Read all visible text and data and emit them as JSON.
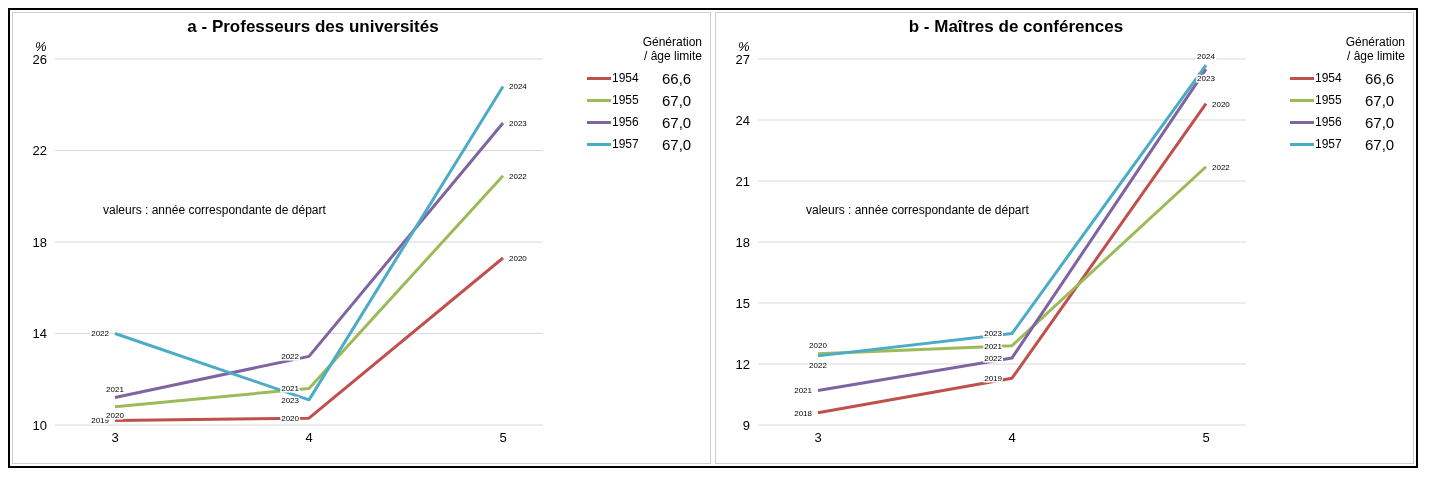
{
  "chart_data": [
    {
      "type": "line",
      "title": "a - Professeurs des universités",
      "ylabel": "%",
      "legend_title": "Génération\n/ âge limite",
      "categories": [
        "3",
        "4",
        "5"
      ],
      "ylim": [
        10,
        26
      ],
      "yticks": [
        10,
        14,
        18,
        22,
        26
      ],
      "grid": "y",
      "legend": "top right",
      "series": [
        {
          "name": "1954",
          "color": "#c0504d",
          "values": [
            10.2,
            10.3,
            17.3
          ]
        },
        {
          "name": "1955",
          "color": "#9bbb59",
          "values": [
            10.8,
            11.6,
            20.9
          ]
        },
        {
          "name": "1956",
          "color": "#8064a2",
          "values": [
            11.2,
            13.0,
            23.2
          ]
        },
        {
          "name": "1957",
          "color": "#4bacc6",
          "values": [
            14.0,
            11.1,
            24.8
          ]
        }
      ],
      "annotations": [
        "valeurs : année correspondante de départ",
        "66,6",
        "67,0",
        "67,0",
        "67,0",
        {
          "text": "2019",
          "x": "3",
          "y": 10.2
        },
        {
          "text": "2020",
          "x": "4",
          "y": 10.3
        },
        {
          "text": "2020",
          "x": "5",
          "y": 17.3
        },
        {
          "text": "2020",
          "x": "3",
          "y": 10.8
        },
        {
          "text": "2021",
          "x": "4",
          "y": 11.6
        },
        {
          "text": "2022",
          "x": "5",
          "y": 20.9
        },
        {
          "text": "2021",
          "x": "3",
          "y": 11.2
        },
        {
          "text": "2022",
          "x": "4",
          "y": 13.0
        },
        {
          "text": "2023",
          "x": "5",
          "y": 23.2
        },
        {
          "text": "2022",
          "x": "3",
          "y": 14.0
        },
        {
          "text": "2023",
          "x": "4",
          "y": 11.1
        },
        {
          "text": "2024",
          "x": "5",
          "y": 24.8
        }
      ]
    },
    {
      "type": "line",
      "title": "b - Maîtres de conférences",
      "ylabel": "%",
      "legend_title": "Génération\n/ âge limite",
      "categories": [
        "3",
        "4",
        "5"
      ],
      "ylim": [
        9,
        27
      ],
      "yticks": [
        9,
        12,
        15,
        18,
        21,
        24,
        27
      ],
      "grid": "y",
      "legend": "top right",
      "series": [
        {
          "name": "1954",
          "color": "#c0504d",
          "values": [
            9.6,
            11.3,
            24.8
          ]
        },
        {
          "name": "1955",
          "color": "#9bbb59",
          "values": [
            12.5,
            12.9,
            21.7
          ]
        },
        {
          "name": "1956",
          "color": "#8064a2",
          "values": [
            10.7,
            12.3,
            26.5
          ]
        },
        {
          "name": "1957",
          "color": "#4bacc6",
          "values": [
            12.4,
            13.5,
            26.7
          ]
        }
      ],
      "annotations": [
        "valeurs : année correspondante de départ",
        "66,6",
        "67,0",
        "67,0",
        "67,0",
        {
          "text": "2018",
          "x": "3",
          "y": 9.6
        },
        {
          "text": "2019",
          "x": "4",
          "y": 11.3
        },
        {
          "text": "2020",
          "x": "5",
          "y": 24.8
        },
        {
          "text": "2020",
          "x": "3",
          "y": 12.5
        },
        {
          "text": "2021",
          "x": "4",
          "y": 12.9
        },
        {
          "text": "2022",
          "x": "5",
          "y": 21.7
        },
        {
          "text": "2021",
          "x": "3",
          "y": 10.7
        },
        {
          "text": "2022",
          "x": "4",
          "y": 12.3
        },
        {
          "text": "2023",
          "x": "5",
          "y": 26.5
        },
        {
          "text": "2022",
          "x": "3",
          "y": 12.4
        },
        {
          "text": "2023",
          "x": "4",
          "y": 13.5
        },
        {
          "text": "2024",
          "x": "5",
          "y": 26.7
        }
      ]
    }
  ]
}
